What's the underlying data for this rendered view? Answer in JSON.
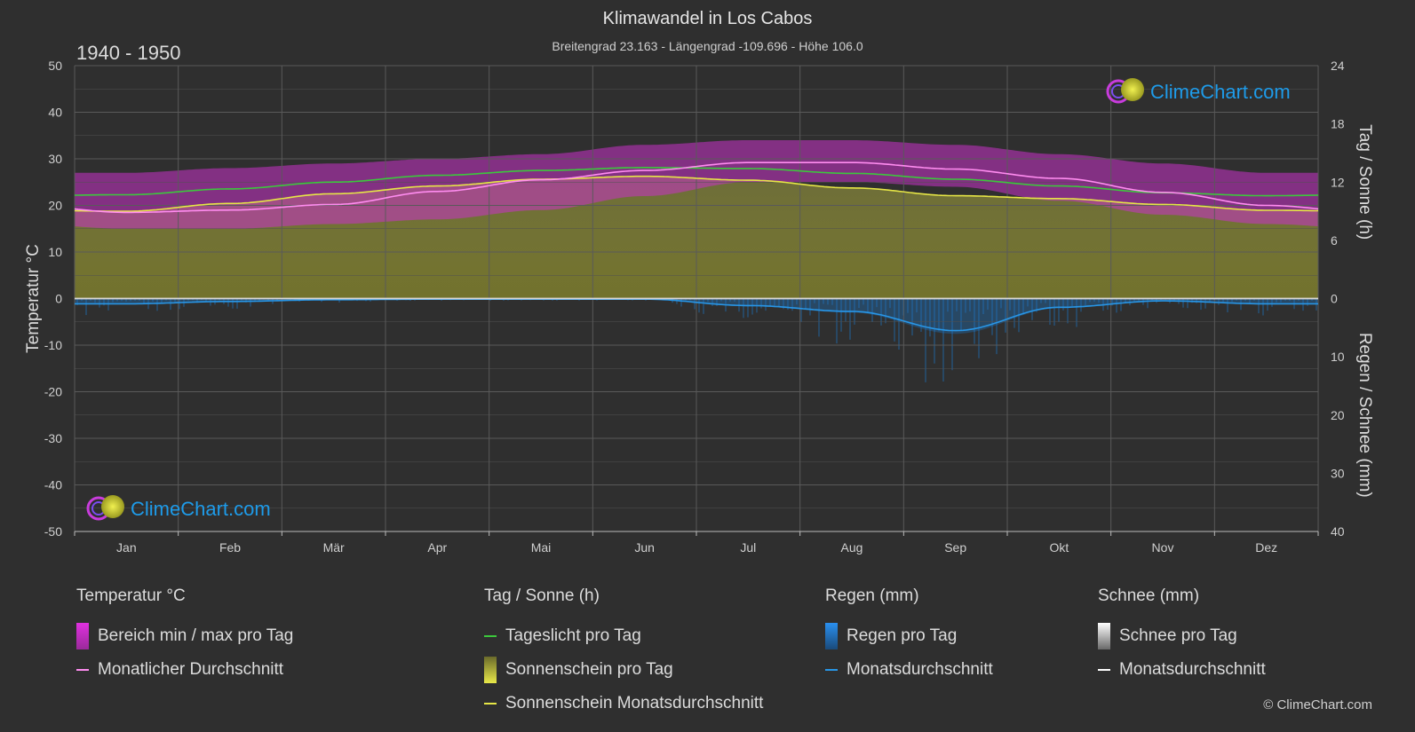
{
  "header": {
    "title": "Klimawandel in Los Cabos",
    "subtitle": "Breitengrad 23.163 - Längengrad -109.696 - Höhe 106.0",
    "period": "1940 - 1950"
  },
  "branding": {
    "logo_text": "ClimeChart.com",
    "copyright": "© ClimeChart.com"
  },
  "colors": {
    "background": "#2f2f2f",
    "temp_range": "#c832c8",
    "temp_avg": "#ff8cf0",
    "daylight": "#3cc83c",
    "sunshine_fill": "#8c8c32",
    "sunshine_avg": "#e6e646",
    "rain": "#1e78c8",
    "rain_avg": "#2896e6",
    "snow_avg": "#ffffff",
    "logo": "#1e9be9"
  },
  "legend": {
    "temp": {
      "title": "Temperatur °C",
      "range": "Bereich min / max pro Tag",
      "avg": "Monatlicher Durchschnitt"
    },
    "sun": {
      "title": "Tag / Sonne (h)",
      "daylight": "Tageslicht pro Tag",
      "sunshine": "Sonnenschein pro Tag",
      "sunshine_avg": "Sonnenschein Monatsdurchschnitt"
    },
    "rain": {
      "title": "Regen (mm)",
      "per_day": "Regen pro Tag",
      "avg": "Monatsdurchschnitt"
    },
    "snow": {
      "title": "Schnee (mm)",
      "per_day": "Schnee pro Tag",
      "avg": "Monatsdurchschnitt"
    }
  },
  "chart_data": {
    "type": "line",
    "categories": [
      "Jan",
      "Feb",
      "Mär",
      "Apr",
      "Mai",
      "Jun",
      "Jul",
      "Aug",
      "Sep",
      "Okt",
      "Nov",
      "Dez"
    ],
    "axes": {
      "left": {
        "label": "Temperatur °C",
        "range": [
          -50,
          50
        ],
        "ticks": [
          50,
          40,
          30,
          20,
          10,
          0,
          -10,
          -20,
          -30,
          -40,
          -50
        ]
      },
      "right_top": {
        "label": "Tag / Sonne (h)",
        "range": [
          0,
          24
        ],
        "ticks": [
          24,
          18,
          12,
          6,
          0
        ]
      },
      "right_bottom": {
        "label": "Regen / Schnee (mm)",
        "range": [
          0,
          40
        ],
        "ticks": [
          0,
          10,
          20,
          30,
          40
        ]
      }
    },
    "grid": true,
    "series": [
      {
        "name": "Bereich min / max pro Tag",
        "unit": "°C",
        "min": [
          15,
          15,
          16,
          17,
          19,
          22,
          25,
          25,
          24,
          21,
          18,
          16
        ],
        "max": [
          27,
          28,
          29,
          30,
          31,
          33,
          34,
          34,
          33,
          31,
          29,
          27
        ]
      },
      {
        "name": "Monatlicher Durchschnitt",
        "unit": "°C",
        "values": [
          18.5,
          19.0,
          20.2,
          23.0,
          25.5,
          27.5,
          29.2,
          29.2,
          27.8,
          25.8,
          22.8,
          20.0
        ]
      },
      {
        "name": "Tageslicht pro Tag",
        "unit": "h",
        "values": [
          10.7,
          11.3,
          12.0,
          12.7,
          13.2,
          13.5,
          13.4,
          12.9,
          12.3,
          11.6,
          10.9,
          10.6
        ]
      },
      {
        "name": "Sonnenschein Monatsdurchschnitt",
        "unit": "h",
        "values": [
          9.0,
          9.8,
          10.8,
          11.6,
          12.3,
          12.6,
          12.2,
          11.4,
          10.6,
          10.3,
          9.7,
          9.1
        ]
      },
      {
        "name": "Regen Monatsdurchschnitt",
        "unit": "mm",
        "values": [
          0.9,
          0.5,
          0.2,
          0.1,
          0.1,
          0.1,
          1.2,
          2.2,
          5.5,
          1.5,
          0.4,
          0.9
        ]
      },
      {
        "name": "Schnee Monatsdurchschnitt",
        "unit": "mm",
        "values": [
          0,
          0,
          0,
          0,
          0,
          0,
          0,
          0,
          0,
          0,
          0,
          0
        ]
      }
    ]
  }
}
